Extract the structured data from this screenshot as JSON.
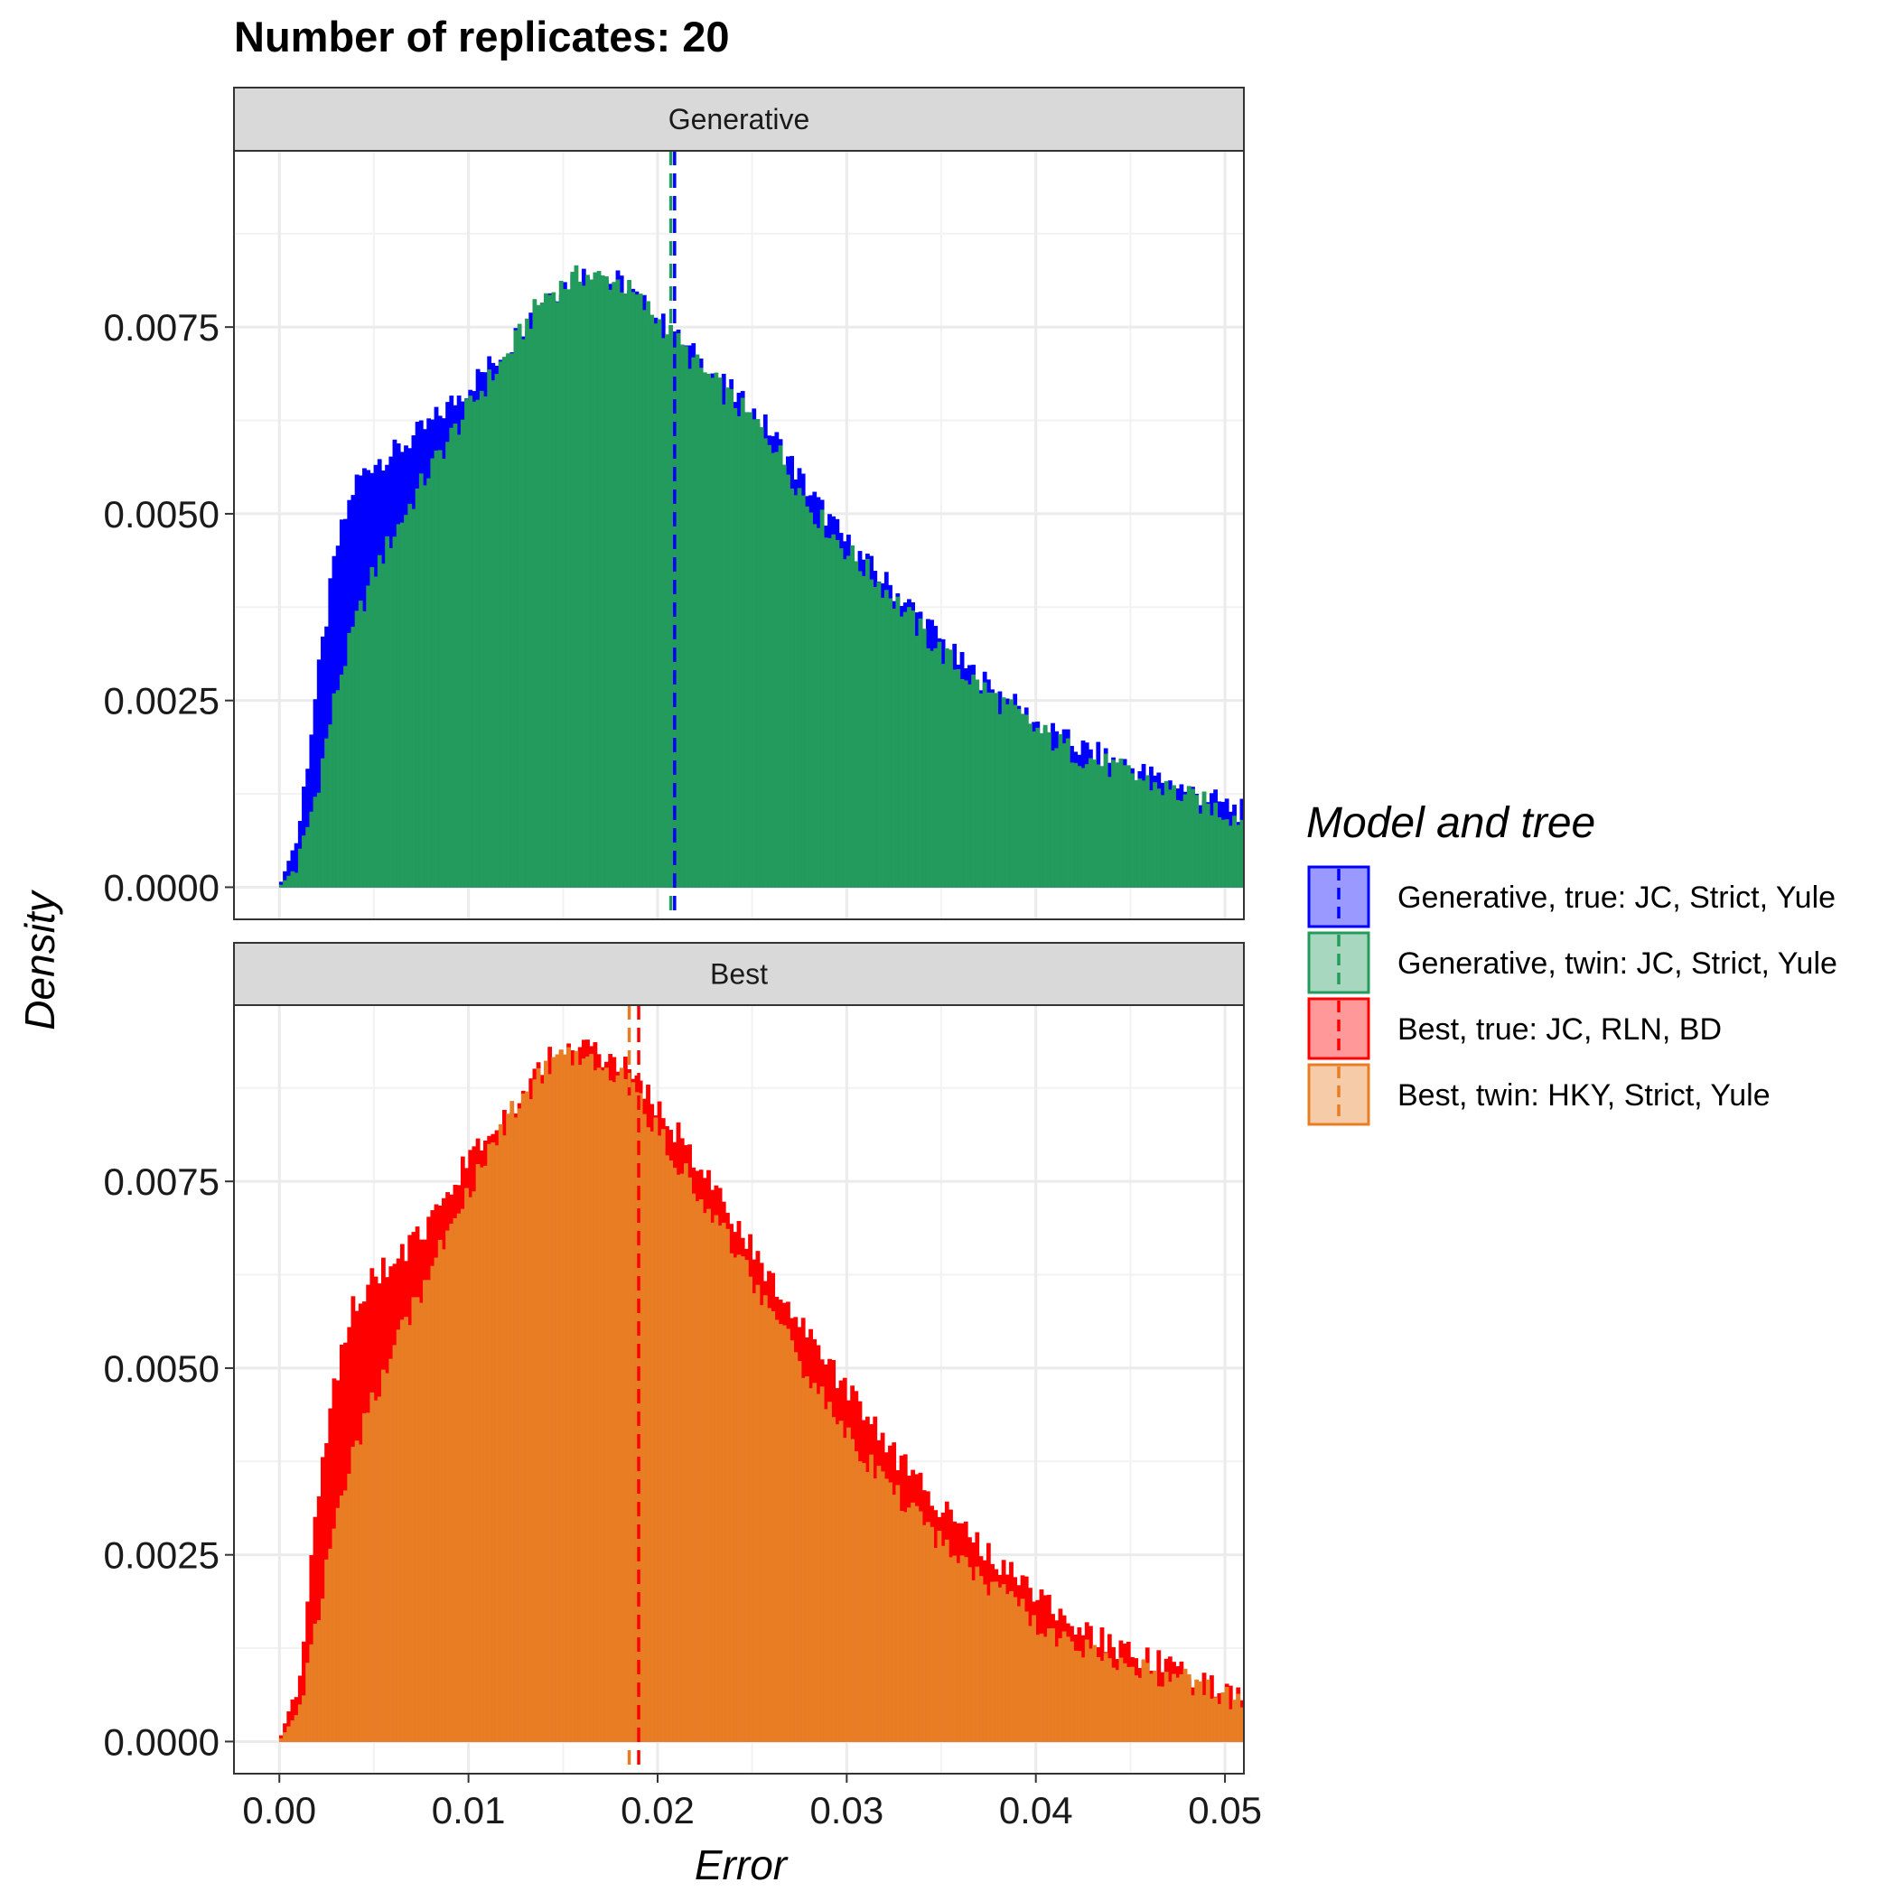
{
  "title": "Number of replicates:  20",
  "chart_data": {
    "type": "bar",
    "subtype": "faceted overlapping histograms (density)",
    "xlabel": "Error",
    "ylabel": "Density",
    "xlim": [
      -0.0024,
      0.051
    ],
    "ylim": [
      -0.00043,
      0.00986
    ],
    "x_ticks": [
      0.0,
      0.01,
      0.02,
      0.03,
      0.04,
      0.05
    ],
    "x_tick_labels": [
      "0.00",
      "0.01",
      "0.02",
      "0.03",
      "0.04",
      "0.05"
    ],
    "y_ticks": [
      0.0,
      0.0025,
      0.005,
      0.0075
    ],
    "y_tick_labels": [
      "0.0000",
      "0.0025",
      "0.0050",
      "0.0075"
    ],
    "grid": true,
    "legend": {
      "title": "Model and tree",
      "position": "right",
      "entries": [
        {
          "label": "Generative, true: JC, Strict, Yule",
          "color": "#0000ff"
        },
        {
          "label": "Generative, twin: JC, Strict, Yule",
          "color": "#239b5c"
        },
        {
          "label": "Best, true: JC, RLN, BD",
          "color": "#ff0000"
        },
        {
          "label": "Best, twin: HKY, Strict, Yule",
          "color": "#e87d24"
        }
      ]
    },
    "facets": [
      {
        "name": "Generative",
        "series": [
          {
            "name": "Generative, true: JC, Strict, Yule",
            "color": "#0000ff",
            "mean": 0.0209,
            "x": [
              0.0,
              0.001,
              0.002,
              0.003,
              0.004,
              0.005,
              0.006,
              0.008,
              0.01,
              0.012,
              0.014,
              0.016,
              0.018,
              0.02,
              0.022,
              0.024,
              0.026,
              0.028,
              0.03,
              0.032,
              0.034,
              0.036,
              0.038,
              0.04,
              0.042,
              0.044,
              0.046,
              0.048,
              0.05,
              0.051
            ],
            "y": [
              0.0,
              0.0007,
              0.0027,
              0.0045,
              0.0054,
              0.0057,
              0.0058,
              0.0062,
              0.0067,
              0.0072,
              0.0079,
              0.0082,
              0.0081,
              0.0076,
              0.0071,
              0.0066,
              0.0061,
              0.0053,
              0.0046,
              0.0041,
              0.0036,
              0.003,
              0.0026,
              0.0022,
              0.0019,
              0.0017,
              0.0015,
              0.0013,
              0.0011,
              0.001
            ]
          },
          {
            "name": "Generative, twin: JC, Strict, Yule",
            "color": "#239b5c",
            "mean": 0.0207,
            "x": [
              0.0,
              0.001,
              0.002,
              0.003,
              0.004,
              0.005,
              0.006,
              0.008,
              0.01,
              0.012,
              0.014,
              0.016,
              0.018,
              0.02,
              0.022,
              0.024,
              0.026,
              0.028,
              0.03,
              0.032,
              0.034,
              0.036,
              0.038,
              0.04,
              0.042,
              0.044,
              0.046,
              0.048,
              0.05,
              0.051
            ],
            "y": [
              0.0,
              0.0003,
              0.0013,
              0.0026,
              0.0035,
              0.0042,
              0.0047,
              0.0056,
              0.0064,
              0.0071,
              0.0079,
              0.0082,
              0.0081,
              0.0076,
              0.007,
              0.0065,
              0.006,
              0.0051,
              0.0045,
              0.004,
              0.0034,
              0.0029,
              0.0025,
              0.0021,
              0.0018,
              0.0016,
              0.0014,
              0.0012,
              0.001,
              0.0009
            ]
          }
        ]
      },
      {
        "name": "Best",
        "series": [
          {
            "name": "Best, true: JC, RLN, BD",
            "color": "#ff0000",
            "mean": 0.019,
            "x": [
              0.0,
              0.001,
              0.002,
              0.003,
              0.004,
              0.005,
              0.006,
              0.008,
              0.01,
              0.012,
              0.014,
              0.016,
              0.018,
              0.02,
              0.022,
              0.024,
              0.026,
              0.028,
              0.03,
              0.032,
              0.034,
              0.036,
              0.038,
              0.04,
              0.042,
              0.044,
              0.046,
              0.048,
              0.05,
              0.051
            ],
            "y": [
              0.0,
              0.0008,
              0.0031,
              0.0049,
              0.0059,
              0.0062,
              0.0064,
              0.0069,
              0.0078,
              0.0084,
              0.0091,
              0.0093,
              0.0091,
              0.0085,
              0.0078,
              0.007,
              0.0062,
              0.0054,
              0.0047,
              0.004,
              0.0034,
              0.0029,
              0.0024,
              0.002,
              0.0016,
              0.0013,
              0.0011,
              0.0009,
              0.0007,
              0.0006
            ]
          },
          {
            "name": "Best, twin: HKY, Strict, Yule",
            "color": "#e87d24",
            "mean": 0.0185,
            "x": [
              0.0,
              0.001,
              0.002,
              0.003,
              0.004,
              0.005,
              0.006,
              0.008,
              0.01,
              0.012,
              0.014,
              0.016,
              0.018,
              0.02,
              0.022,
              0.024,
              0.026,
              0.028,
              0.03,
              0.032,
              0.034,
              0.036,
              0.038,
              0.04,
              0.042,
              0.044,
              0.046,
              0.048,
              0.05,
              0.051
            ],
            "y": [
              0.0,
              0.0004,
              0.0016,
              0.003,
              0.0039,
              0.0046,
              0.0052,
              0.0063,
              0.0074,
              0.0083,
              0.009,
              0.0092,
              0.0089,
              0.0082,
              0.0074,
              0.0066,
              0.0058,
              0.0049,
              0.0041,
              0.0035,
              0.0029,
              0.0024,
              0.002,
              0.0016,
              0.0013,
              0.0011,
              0.0009,
              0.0008,
              0.0006,
              0.0005
            ]
          }
        ]
      }
    ]
  }
}
